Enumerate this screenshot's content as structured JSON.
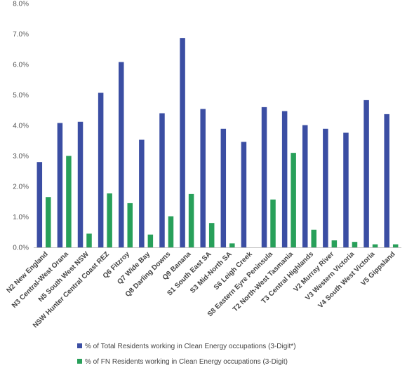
{
  "chart_data": {
    "type": "bar",
    "categories": [
      "N2 New England",
      "N3 Central-West Orana",
      "N5 South West NSW",
      "NSW Hunter Central Coast REZ",
      "Q6 Fitzroy",
      "Q7 Wide Bay",
      "Q8 Darling Downs",
      "Q9 Banana",
      "S1 South East SA",
      "S3 Mid-North SA",
      "S6 Leigh Creek",
      "S8 Eastern Eyre Peninsula",
      "T2 North-West Tasmania",
      "T3 Central Highlands",
      "V2 Murray River",
      "V3 Western Victoria",
      "V4 South West Victoria",
      "V5 Gippsland"
    ],
    "series": [
      {
        "name": "% of Total Residents working in Clean Energy occupations (3-Digit*)",
        "color": "#3b4ea3",
        "values": [
          2.8,
          4.08,
          4.12,
          5.07,
          6.08,
          3.53,
          4.4,
          6.87,
          4.54,
          3.89,
          3.46,
          4.6,
          4.47,
          4.01,
          3.89,
          3.76,
          4.83,
          4.37
        ]
      },
      {
        "name": "% of FN Residents working in Clean Energy occupations (3-Digit)",
        "color": "#28a05a",
        "values": [
          1.65,
          3.0,
          0.45,
          1.77,
          1.45,
          0.42,
          1.02,
          1.75,
          0.8,
          0.13,
          0.0,
          1.57,
          3.1,
          0.58,
          0.23,
          0.18,
          0.1,
          0.1
        ]
      }
    ],
    "y_ticks": [
      "0.0%",
      "1.0%",
      "2.0%",
      "3.0%",
      "4.0%",
      "5.0%",
      "6.0%",
      "7.0%",
      "8.0%"
    ],
    "ylim": [
      0,
      8
    ],
    "grid": false,
    "legend_position": "bottom",
    "title": "",
    "xlabel": "",
    "ylabel": ""
  }
}
